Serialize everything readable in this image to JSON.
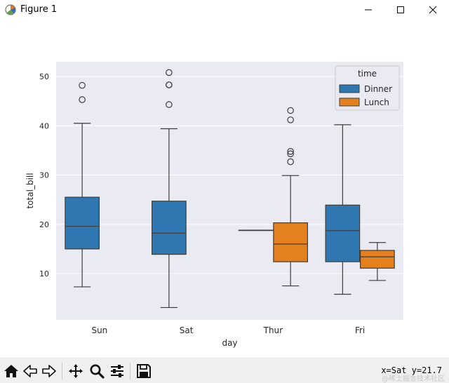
{
  "window": {
    "title": "Figure 1"
  },
  "toolbar": {
    "items": [
      {
        "icon": "home-icon"
      },
      {
        "icon": "back-arrow-icon"
      },
      {
        "icon": "forward-arrow-icon"
      },
      {
        "icon": "pan-move-icon"
      },
      {
        "icon": "zoom-magnifier-icon"
      },
      {
        "icon": "configure-subplots-icon"
      },
      {
        "icon": "save-disk-icon"
      }
    ],
    "coords": "x=Sat y=21.7",
    "watermark": "@稀土掘金技术社区"
  },
  "chart_data": {
    "type": "box",
    "xlabel": "day",
    "ylabel": "total_bill",
    "categories": [
      "Sun",
      "Sat",
      "Thur",
      "Fri"
    ],
    "yticks": [
      10,
      20,
      30,
      40,
      50
    ],
    "ylim": [
      0.6,
      53
    ],
    "legend": {
      "title": "time",
      "entries": [
        "Dinner",
        "Lunch"
      ],
      "position": "top-right"
    },
    "series": [
      {
        "name": "Dinner",
        "color": "#2f77b0",
        "boxes": [
          {
            "category": "Sun",
            "whisker_low": 7.3,
            "q1": 15.0,
            "median": 19.6,
            "q3": 25.5,
            "whisker_high": 40.5,
            "outliers": [
              45.3,
              48.2
            ]
          },
          {
            "category": "Sat",
            "whisker_low": 3.1,
            "q1": 13.9,
            "median": 18.2,
            "q3": 24.7,
            "whisker_high": 39.4,
            "outliers": [
              44.3,
              48.3,
              48.3,
              50.8
            ]
          },
          {
            "category": "Thur",
            "whisker_low": 18.8,
            "q1": 18.8,
            "median": 18.8,
            "q3": 18.8,
            "whisker_high": 18.8,
            "outliers": []
          },
          {
            "category": "Fri",
            "whisker_low": 5.8,
            "q1": 12.4,
            "median": 18.7,
            "q3": 23.9,
            "whisker_high": 40.2,
            "outliers": []
          }
        ]
      },
      {
        "name": "Lunch",
        "color": "#e5801f",
        "boxes": [
          {
            "category": "Thur",
            "whisker_low": 7.5,
            "q1": 12.4,
            "median": 16.0,
            "q3": 20.3,
            "whisker_high": 29.9,
            "outliers": [
              32.7,
              34.3,
              34.8,
              41.2,
              43.1
            ]
          },
          {
            "category": "Fri",
            "whisker_low": 8.6,
            "q1": 11.1,
            "median": 13.4,
            "q3": 14.7,
            "whisker_high": 16.3,
            "outliers": []
          }
        ]
      }
    ]
  }
}
